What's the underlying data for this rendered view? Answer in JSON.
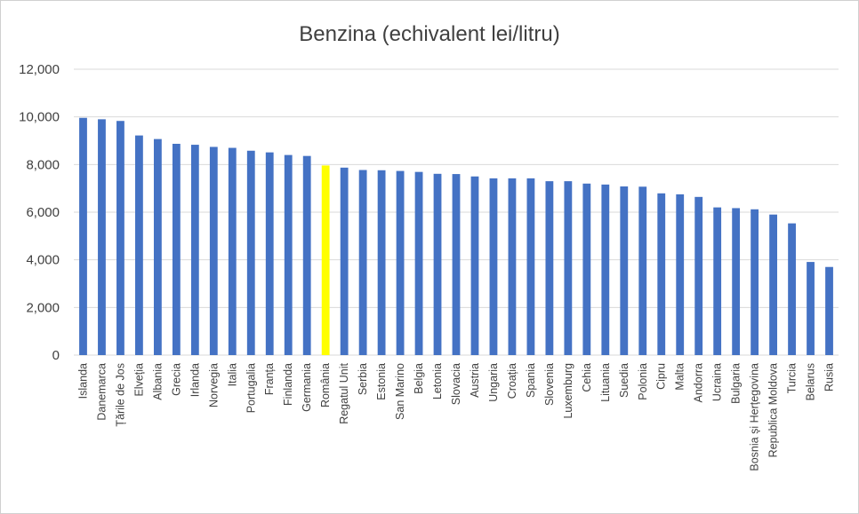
{
  "chart_data": {
    "type": "bar",
    "title": "Benzina (echivalent lei/litru)",
    "xlabel": "",
    "ylabel": "",
    "ylim": [
      0,
      12000
    ],
    "yticks": [
      "0",
      "2,000",
      "4,000",
      "6,000",
      "8,000",
      "10,000",
      "12,000"
    ],
    "ytick_values": [
      0,
      2000,
      4000,
      6000,
      8000,
      10000,
      12000
    ],
    "grid": true,
    "legend": "none",
    "bar_color": "#4472C4",
    "highlight_color": "#FFFF00",
    "highlight_category": "România",
    "categories": [
      "Islanda",
      "Danemarca",
      "Țările de Jos",
      "Elveția",
      "Albania",
      "Grecia",
      "Irlanda",
      "Norvegia",
      "Italia",
      "Portugalia",
      "Franța",
      "Finlanda",
      "Germania",
      "România",
      "Regatul Unit",
      "Serbia",
      "Estonia",
      "San Marino",
      "Belgia",
      "Letonia",
      "Slovacia",
      "Austria",
      "Ungaria",
      "Croația",
      "Spania",
      "Slovenia",
      "Luxemburg",
      "Cehia",
      "Lituania",
      "Suedia",
      "Polonia",
      "Cipru",
      "Malta",
      "Andorra",
      "Ucraina",
      "Bulgaria",
      "Bosnia și Herțegovina",
      "Republica Moldova",
      "Turcia",
      "Belarus",
      "Rusia"
    ],
    "values": [
      9960,
      9900,
      9830,
      9220,
      9070,
      8870,
      8830,
      8740,
      8700,
      8580,
      8510,
      8400,
      8360,
      7960,
      7870,
      7770,
      7760,
      7730,
      7690,
      7610,
      7600,
      7500,
      7420,
      7420,
      7420,
      7300,
      7300,
      7200,
      7160,
      7080,
      7070,
      6790,
      6750,
      6640,
      6200,
      6170,
      6120,
      5900,
      5530,
      3910,
      3700
    ]
  }
}
